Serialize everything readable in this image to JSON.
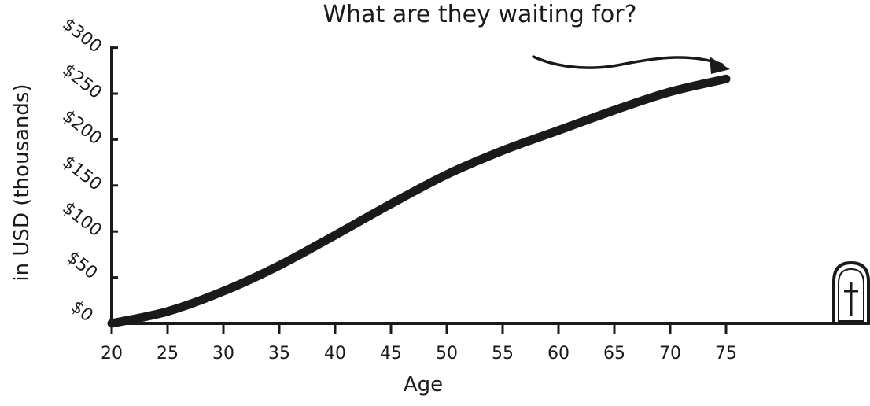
{
  "chart_data": {
    "type": "line",
    "title": "What are they waiting for?",
    "xlabel": "Age",
    "ylabel": "in USD (thousands)",
    "x_ticks": [
      "20",
      "25",
      "30",
      "35",
      "40",
      "45",
      "50",
      "55",
      "60",
      "65",
      "70",
      "75"
    ],
    "y_ticks": [
      "$0",
      "$50",
      "$100",
      "$150",
      "$200",
      "$250",
      "$300"
    ],
    "xlim": [
      20,
      75
    ],
    "ylim": [
      0,
      300
    ],
    "grid": false,
    "series": [
      {
        "x": [
          20,
          25,
          30,
          35,
          40,
          45,
          50,
          55,
          60,
          65,
          70,
          75
        ],
        "values": [
          0,
          13,
          35,
          63,
          96,
          130,
          162,
          188,
          210,
          232,
          252,
          266
        ]
      }
    ],
    "annotations": [
      "arrow-to-line-end",
      "tombstone-with-cross"
    ]
  },
  "colors": {
    "ink": "#1a1a1a",
    "background": "#ffffff"
  }
}
